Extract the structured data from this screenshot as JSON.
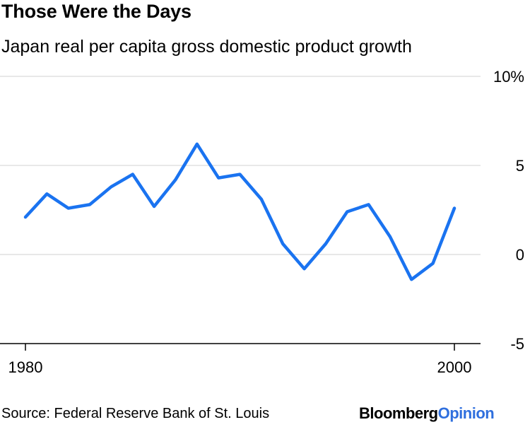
{
  "title": "Those Were the Days",
  "subtitle": "Japan real per capita gross domestic product growth",
  "source": "Source: Federal Reserve Bank of St. Louis",
  "brand": {
    "part1": "Bloomberg",
    "part2": "Opinion"
  },
  "colors": {
    "line": "#1a73f0",
    "grid": "#d9d9d9",
    "axis": "#000000",
    "brand_accent": "#2f6fde"
  },
  "chart_data": {
    "type": "line",
    "title": "Those Were the Days",
    "subtitle": "Japan real per capita gross domestic product growth",
    "xlabel": "",
    "ylabel": "",
    "xlim": [
      1980,
      2001
    ],
    "ylim": [
      -5,
      10
    ],
    "grid": true,
    "x_ticks": [
      1980,
      2000
    ],
    "x_tick_labels": [
      "1980",
      "2000"
    ],
    "y_ticks": [
      10,
      5,
      0,
      -5
    ],
    "y_tick_labels": [
      "10%",
      "5",
      "0",
      "-5"
    ],
    "series": [
      {
        "x": [
          1980,
          1981,
          1982,
          1983,
          1984,
          1985,
          1986,
          1987,
          1988,
          1989,
          1990,
          1991,
          1992,
          1993,
          1994,
          1995,
          1996,
          1997,
          1998,
          1999,
          2000
        ],
        "values": [
          2.1,
          3.4,
          2.6,
          2.8,
          3.8,
          4.5,
          2.7,
          4.2,
          6.2,
          4.3,
          4.5,
          3.1,
          0.6,
          -0.8,
          0.6,
          2.4,
          2.8,
          1.0,
          -1.4,
          -0.5,
          2.6
        ]
      }
    ]
  }
}
